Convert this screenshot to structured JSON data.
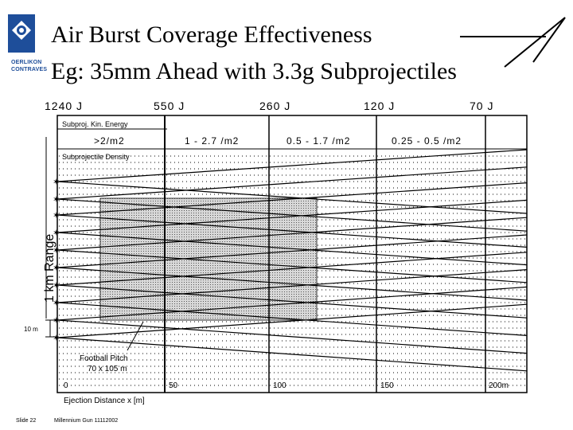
{
  "slide": {
    "title_line1": "Air Burst Coverage Effectiveness",
    "title_line2": "Eg: 35mm Ahead with 3.3g Subprojectiles",
    "logo_text_line1": "OERLIKON",
    "logo_text_line2": "CONTRAVES",
    "footer_slide": "Slide 22",
    "footer_event": "Millennium Gun 11112002"
  },
  "diagram": {
    "energy_labels": [
      "1240 J",
      "550 J",
      "260 J",
      "120 J",
      "70 J"
    ],
    "kin_energy_label": "Subproj. Kin. Energy",
    "density_row_label": "Subprojectile Density",
    "density_bands": [
      ">2/m2",
      "1 - 2.7 /m2",
      "0.5 - 1.7 /m2",
      "0.25 - 0.5 /m2"
    ],
    "y_axis_label": "1 km Range",
    "ten_m_label": "10 m",
    "pitch_label_line1": "Football Pitch",
    "pitch_label_line2": "70 x 105 m",
    "x_axis_label": "Ejection Distance x [m]",
    "x_ticks": [
      "0",
      "50",
      "100",
      "150",
      "200m"
    ],
    "line_color": "#000000",
    "pitch_fill": "#bdbdbd"
  }
}
